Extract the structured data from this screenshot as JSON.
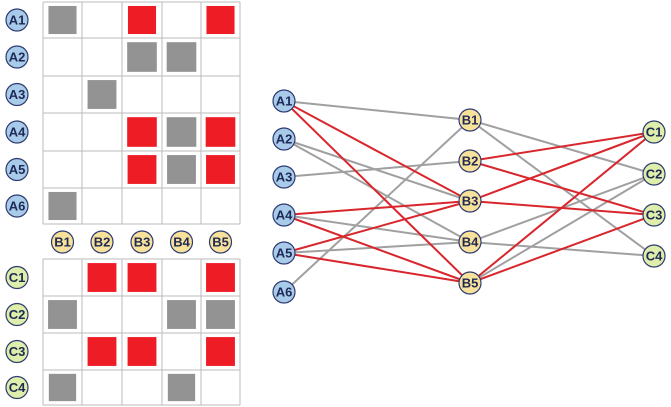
{
  "colors": {
    "a_fill": "#a9cbea",
    "b_fill": "#f8e19a",
    "c_fill": "#dfeeaa",
    "node_stroke": "#2c3b70",
    "on": "#ee1c24",
    "off": "#939393",
    "grid": "#bbbbbb",
    "edge_red": "#d9262d",
    "edge_gray": "#a0a0a0"
  },
  "nodes": {
    "a": [
      "A1",
      "A2",
      "A3",
      "A4",
      "A5",
      "A6"
    ],
    "b": [
      "B1",
      "B2",
      "B3",
      "B4",
      "B5"
    ],
    "c": [
      "C1",
      "C2",
      "C3",
      "C4"
    ]
  },
  "matrix_ab": [
    [
      "off",
      "",
      "on",
      "",
      "on"
    ],
    [
      "",
      "",
      "off",
      "off",
      ""
    ],
    [
      "",
      "off",
      "",
      "",
      ""
    ],
    [
      "",
      "",
      "on",
      "off",
      "on"
    ],
    [
      "",
      "",
      "on",
      "off",
      "on"
    ],
    [
      "off",
      "",
      "",
      "",
      ""
    ]
  ],
  "matrix_cb": [
    [
      "",
      "on",
      "on",
      "",
      "on"
    ],
    [
      "off",
      "",
      "",
      "off",
      "off"
    ],
    [
      "",
      "on",
      "on",
      "",
      "on"
    ],
    [
      "off",
      "",
      "",
      "off",
      ""
    ]
  ]
}
